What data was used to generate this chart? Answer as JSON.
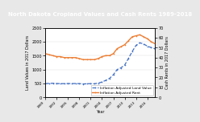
{
  "title": "North Dakota Cropland Values and Cash Rents 1989-2018",
  "years": [
    1989,
    1990,
    1991,
    1992,
    1993,
    1994,
    1995,
    1996,
    1997,
    1998,
    1999,
    2000,
    2001,
    2002,
    2003,
    2004,
    2005,
    2006,
    2007,
    2008,
    2009,
    2010,
    2011,
    2012,
    2013,
    2014,
    2015,
    2016,
    2017,
    2018
  ],
  "land_value": [
    490,
    500,
    505,
    495,
    490,
    490,
    495,
    490,
    495,
    490,
    480,
    485,
    490,
    485,
    510,
    550,
    610,
    680,
    810,
    1000,
    1060,
    1160,
    1400,
    1650,
    1870,
    1960,
    1920,
    1840,
    1790,
    1750
  ],
  "cash_rent": [
    44,
    43,
    42,
    41,
    41,
    40,
    40,
    40,
    40,
    39,
    38,
    38,
    38,
    38,
    39,
    41,
    42,
    42,
    44,
    49,
    51,
    53,
    57,
    61,
    62,
    63,
    61,
    59,
    56,
    54
  ],
  "land_color": "#4472C4",
  "rent_color": "#ED7D31",
  "land_label": "Inflation Adjusted Land Value",
  "rent_label": "Inflation Adjusted Rent",
  "ylabel_left": "Land Values in 2017 Dollars",
  "ylabel_right": "Cash Rents in 2017 Dollars",
  "xlabel": "Year",
  "ylim_left": [
    0,
    2500
  ],
  "ylim_right": [
    0,
    70
  ],
  "yticks_left": [
    0,
    500,
    1000,
    1500,
    2000,
    2500
  ],
  "yticks_right": [
    0,
    10,
    20,
    30,
    40,
    50,
    60,
    70
  ],
  "plot_bg_color": "#FFFFFF",
  "fig_bg_color": "#E8E8E8",
  "title_bg_color": "#303030",
  "title_text_color": "#FFFFFF",
  "title_fontsize": 5.0,
  "axis_fontsize": 3.5,
  "tick_fontsize": 3.5,
  "legend_fontsize": 3.2
}
